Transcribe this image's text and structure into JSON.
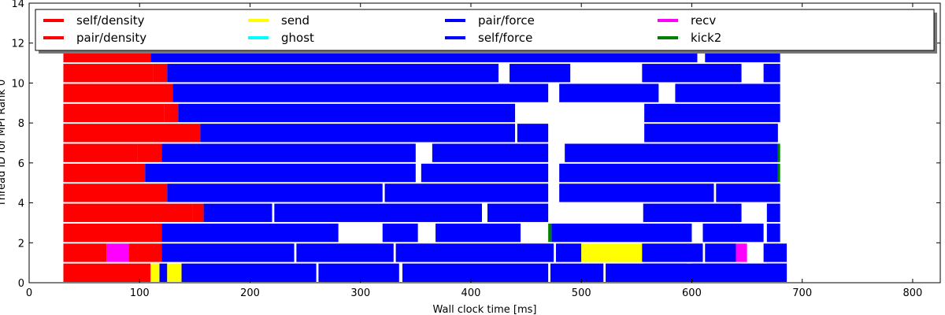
{
  "chart_data": {
    "type": "bar",
    "subtype": "timeline",
    "title": "",
    "xlabel": "Wall clock time [ms]",
    "ylabel": "Thread ID for MPI Rank 0",
    "xlim": [
      0,
      825
    ],
    "ylim": [
      0,
      14
    ],
    "x_ticks": [
      0,
      100,
      200,
      300,
      400,
      500,
      600,
      700,
      800
    ],
    "y_ticks": [
      0,
      2,
      4,
      6,
      8,
      10,
      12,
      14
    ],
    "grid": false,
    "legend_position": "top",
    "legend": [
      {
        "name": "self/density",
        "color": "#ff0000"
      },
      {
        "name": "pair/density",
        "color": "#ff0000"
      },
      {
        "name": "send",
        "color": "#ffff00"
      },
      {
        "name": "ghost",
        "color": "#00ffff"
      },
      {
        "name": "pair/force",
        "color": "#0000ff"
      },
      {
        "name": "self/force",
        "color": "#0000ff"
      },
      {
        "name": "recv",
        "color": "#ff00ff"
      },
      {
        "name": "kick2",
        "color": "#008000"
      }
    ],
    "series": [
      {
        "thread": 0,
        "tasks": [
          {
            "start": 31,
            "end": 110,
            "type": "self/density"
          },
          {
            "start": 110,
            "end": 118,
            "type": "send"
          },
          {
            "start": 118,
            "end": 125,
            "type": "pair/force"
          },
          {
            "start": 125,
            "end": 138,
            "type": "send"
          },
          {
            "start": 138,
            "end": 260,
            "type": "pair/force"
          },
          {
            "start": 262,
            "end": 335,
            "type": "pair/force"
          },
          {
            "start": 338,
            "end": 470,
            "type": "pair/force"
          },
          {
            "start": 472,
            "end": 520,
            "type": "pair/force"
          },
          {
            "start": 522,
            "end": 610,
            "type": "pair/force"
          },
          {
            "start": 612,
            "end": 686,
            "type": "pair/force"
          },
          {
            "start": 556,
            "end": 595,
            "type": "self/force"
          },
          {
            "start": 600,
            "end": 645,
            "type": "pair/force"
          },
          {
            "start": 668,
            "end": 686,
            "type": "pair/force"
          }
        ]
      },
      {
        "thread": 1,
        "tasks": [
          {
            "start": 31,
            "end": 70,
            "type": "pair/density"
          },
          {
            "start": 70,
            "end": 90,
            "type": "recv"
          },
          {
            "start": 90,
            "end": 120,
            "type": "pair/density"
          },
          {
            "start": 120,
            "end": 240,
            "type": "pair/force"
          },
          {
            "start": 242,
            "end": 330,
            "type": "pair/force"
          },
          {
            "start": 332,
            "end": 475,
            "type": "pair/force"
          },
          {
            "start": 477,
            "end": 500,
            "type": "pair/force"
          },
          {
            "start": 500,
            "end": 555,
            "type": "send"
          },
          {
            "start": 555,
            "end": 610,
            "type": "pair/force"
          },
          {
            "start": 612,
            "end": 640,
            "type": "pair/force"
          },
          {
            "start": 640,
            "end": 650,
            "type": "recv"
          },
          {
            "start": 665,
            "end": 686,
            "type": "pair/force"
          }
        ]
      },
      {
        "thread": 2,
        "tasks": [
          {
            "start": 31,
            "end": 120,
            "type": "self/density"
          },
          {
            "start": 120,
            "end": 280,
            "type": "pair/force"
          },
          {
            "start": 320,
            "end": 352,
            "type": "pair/force"
          },
          {
            "start": 368,
            "end": 445,
            "type": "pair/force"
          },
          {
            "start": 470,
            "end": 473,
            "type": "kick2"
          },
          {
            "start": 473,
            "end": 600,
            "type": "pair/force"
          },
          {
            "start": 610,
            "end": 665,
            "type": "pair/force"
          },
          {
            "start": 668,
            "end": 680,
            "type": "pair/force"
          }
        ]
      },
      {
        "thread": 3,
        "tasks": [
          {
            "start": 31,
            "end": 148,
            "type": "self/density"
          },
          {
            "start": 148,
            "end": 158,
            "type": "pair/density"
          },
          {
            "start": 158,
            "end": 220,
            "type": "pair/force"
          },
          {
            "start": 222,
            "end": 410,
            "type": "pair/force"
          },
          {
            "start": 415,
            "end": 470,
            "type": "pair/force"
          },
          {
            "start": 556,
            "end": 645,
            "type": "pair/force"
          },
          {
            "start": 668,
            "end": 680,
            "type": "pair/force"
          }
        ]
      },
      {
        "thread": 4,
        "tasks": [
          {
            "start": 31,
            "end": 125,
            "type": "self/density"
          },
          {
            "start": 125,
            "end": 320,
            "type": "pair/force"
          },
          {
            "start": 322,
            "end": 470,
            "type": "pair/force"
          },
          {
            "start": 480,
            "end": 620,
            "type": "pair/force"
          },
          {
            "start": 622,
            "end": 680,
            "type": "pair/force"
          }
        ]
      },
      {
        "thread": 5,
        "tasks": [
          {
            "start": 31,
            "end": 105,
            "type": "self/density"
          },
          {
            "start": 105,
            "end": 350,
            "type": "pair/force"
          },
          {
            "start": 355,
            "end": 470,
            "type": "pair/force"
          },
          {
            "start": 480,
            "end": 678,
            "type": "pair/force"
          },
          {
            "start": 678,
            "end": 680,
            "type": "kick2"
          }
        ]
      },
      {
        "thread": 6,
        "tasks": [
          {
            "start": 31,
            "end": 98,
            "type": "self/density"
          },
          {
            "start": 98,
            "end": 120,
            "type": "pair/density"
          },
          {
            "start": 120,
            "end": 350,
            "type": "pair/force"
          },
          {
            "start": 365,
            "end": 470,
            "type": "pair/force"
          },
          {
            "start": 485,
            "end": 678,
            "type": "pair/force"
          },
          {
            "start": 678,
            "end": 680,
            "type": "kick2"
          }
        ]
      },
      {
        "thread": 7,
        "tasks": [
          {
            "start": 31,
            "end": 155,
            "type": "self/density"
          },
          {
            "start": 155,
            "end": 440,
            "type": "pair/force"
          },
          {
            "start": 442,
            "end": 470,
            "type": "pair/force"
          },
          {
            "start": 557,
            "end": 678,
            "type": "pair/force"
          }
        ]
      },
      {
        "thread": 8,
        "tasks": [
          {
            "start": 31,
            "end": 122,
            "type": "self/density"
          },
          {
            "start": 122,
            "end": 135,
            "type": "pair/density"
          },
          {
            "start": 135,
            "end": 440,
            "type": "pair/force"
          },
          {
            "start": 557,
            "end": 680,
            "type": "pair/force"
          }
        ]
      },
      {
        "thread": 9,
        "tasks": [
          {
            "start": 31,
            "end": 130,
            "type": "self/density"
          },
          {
            "start": 130,
            "end": 470,
            "type": "pair/force"
          },
          {
            "start": 480,
            "end": 570,
            "type": "pair/force"
          },
          {
            "start": 585,
            "end": 680,
            "type": "pair/force"
          }
        ]
      },
      {
        "thread": 10,
        "tasks": [
          {
            "start": 31,
            "end": 112,
            "type": "self/density"
          },
          {
            "start": 112,
            "end": 125,
            "type": "pair/density"
          },
          {
            "start": 125,
            "end": 425,
            "type": "pair/force"
          },
          {
            "start": 435,
            "end": 490,
            "type": "pair/force"
          },
          {
            "start": 555,
            "end": 645,
            "type": "pair/force"
          },
          {
            "start": 665,
            "end": 680,
            "type": "pair/force"
          }
        ]
      },
      {
        "thread": 11,
        "tasks": [
          {
            "start": 31,
            "end": 110,
            "type": "self/density"
          },
          {
            "start": 110,
            "end": 605,
            "type": "pair/force"
          },
          {
            "start": 612,
            "end": 680,
            "type": "pair/force"
          }
        ]
      }
    ]
  }
}
